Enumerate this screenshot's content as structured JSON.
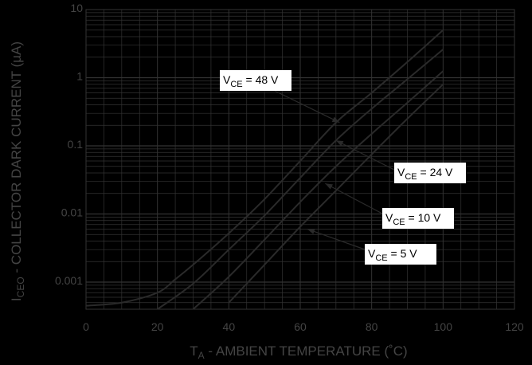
{
  "chart_data": {
    "type": "line",
    "xlabel": {
      "main": "T",
      "sub": "A",
      "rest": " - AMBIENT TEMPERATURE (˚C)"
    },
    "ylabel": {
      "main": "I",
      "sub": "CEO",
      "rest": " - COLLECTOR DARK CURRENT (µA)"
    },
    "xlim": [
      0,
      120
    ],
    "ylim": [
      0.0004,
      10
    ],
    "y_scale": "log",
    "grid": true,
    "x_ticks": [
      "0",
      "20",
      "40",
      "60",
      "80",
      "100",
      "120"
    ],
    "y_ticks": [
      {
        "value": 10,
        "label": "10"
      },
      {
        "value": 1,
        "label": "1"
      },
      {
        "value": 0.1,
        "label": "0.1"
      },
      {
        "value": 0.01,
        "label": "0.01"
      },
      {
        "value": 0.001,
        "label": "0.001"
      }
    ],
    "series": [
      {
        "name": "VCE = 48 V",
        "label": {
          "main": "V",
          "sub": "CE",
          "rest": " = 48 V"
        },
        "x": [
          0,
          10,
          20,
          25,
          30,
          40,
          50,
          60,
          70,
          80,
          90,
          100
        ],
        "y": [
          0.00045,
          0.0005,
          0.0007,
          0.0011,
          0.0018,
          0.0052,
          0.0165,
          0.06,
          0.22,
          0.6,
          1.7,
          5.0
        ]
      },
      {
        "name": "VCE = 24 V",
        "label": {
          "main": "V",
          "sub": "CE",
          "rest": " = 24 V"
        },
        "x": [
          20,
          30,
          40,
          50,
          60,
          70,
          80,
          90,
          100
        ],
        "y": [
          0.0004,
          0.00095,
          0.003,
          0.0095,
          0.034,
          0.12,
          0.35,
          0.95,
          2.6
        ]
      },
      {
        "name": "VCE = 10 V",
        "label": {
          "main": "V",
          "sub": "CE",
          "rest": " = 10 V"
        },
        "x": [
          30,
          40,
          50,
          60,
          70,
          80,
          90,
          100
        ],
        "y": [
          0.0004,
          0.0012,
          0.0042,
          0.015,
          0.05,
          0.15,
          0.43,
          1.25
        ]
      },
      {
        "name": "VCE = 5 V",
        "label": {
          "main": "V",
          "sub": "CE",
          "rest": " = 5 V"
        },
        "x": [
          40,
          50,
          60,
          70,
          80,
          90,
          100
        ],
        "y": [
          0.0005,
          0.0018,
          0.0065,
          0.022,
          0.075,
          0.25,
          0.8
        ]
      }
    ],
    "annotations": [
      {
        "series": 0,
        "pointer_x": 71,
        "pointer_y": 0.22
      },
      {
        "series": 1,
        "pointer_x": 70,
        "pointer_y": 0.12
      },
      {
        "series": 2,
        "pointer_x": 67,
        "pointer_y": 0.028
      },
      {
        "series": 3,
        "pointer_x": 62,
        "pointer_y": 0.006
      }
    ]
  },
  "colors": {
    "background": "#000000",
    "grid": "#333333",
    "line": "#2a2a2a",
    "text": "#444444",
    "label_box": "#ffffff"
  }
}
